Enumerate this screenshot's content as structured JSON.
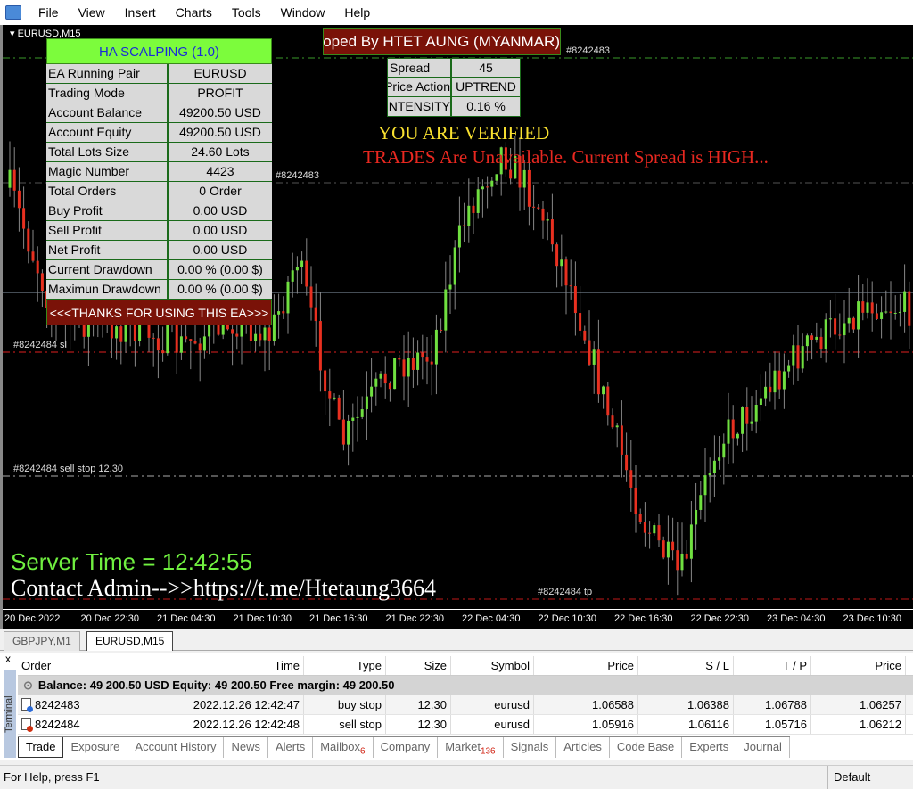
{
  "menu": {
    "items": [
      "File",
      "View",
      "Insert",
      "Charts",
      "Tools",
      "Window",
      "Help"
    ]
  },
  "chart": {
    "title": "EURUSD,M15",
    "order_labels": [
      "#8242483",
      "#8242483",
      "#8242484 sl",
      "#8242484 sell stop 12.30",
      "#8242484 tp"
    ],
    "time_labels": [
      "20 Dec 2022",
      "20 Dec 22:30",
      "21 Dec 04:30",
      "21 Dec 10:30",
      "21 Dec 16:30",
      "21 Dec 22:30",
      "22 Dec 04:30",
      "22 Dec 10:30",
      "22 Dec 16:30",
      "22 Dec 22:30",
      "23 Dec 04:30",
      "23 Dec 10:30"
    ],
    "colors": {
      "bull": "#70e040",
      "bear": "#e83020",
      "wick": "#888888"
    }
  },
  "ea_panel": {
    "title": "HA SCALPING (1.0)",
    "rows": [
      {
        "label": "EA Running Pair",
        "value": "EURUSD"
      },
      {
        "label": "Trading Mode",
        "value": "PROFIT"
      },
      {
        "label": "Account Balance",
        "value": "49200.50 USD"
      },
      {
        "label": "Account Equity",
        "value": "49200.50 USD"
      },
      {
        "label": "Total Lots Size",
        "value": "24.60 Lots"
      },
      {
        "label": "Magic Number",
        "value": "4423"
      },
      {
        "label": "Total Orders",
        "value": "0 Order"
      },
      {
        "label": "Buy Profit",
        "value": "0.00 USD"
      },
      {
        "label": "Sell Profit",
        "value": "0.00 USD"
      },
      {
        "label": "Net Profit",
        "value": "0.00 USD"
      },
      {
        "label": "Current Drawdown",
        "value": "0.00 % (0.00 $)"
      },
      {
        "label": "Maximun Drawdown",
        "value": "0.00 % (0.00 $)"
      }
    ],
    "footer": "<<<THANKS FOR USING THIS EA>>>"
  },
  "developer_banner": "Developed By HTET AUNG (MYANMAR)",
  "spread_panel": {
    "rows": [
      {
        "label": "Spread",
        "value": "45"
      },
      {
        "label": "Price Action",
        "value": "UPTREND"
      },
      {
        "label": "INTENSITY",
        "value": "0.16 %"
      }
    ]
  },
  "messages": {
    "verified": "YOU ARE VERIFIED",
    "trades": "TRADES Are Unavailable. Current Spread is HIGH...",
    "server_time": "Server Time = 12:42:55",
    "contact": "Contact Admin-->>https://t.me/Htetaung3664"
  },
  "chart_tabs": [
    {
      "label": "GBPJPY,M1",
      "active": false
    },
    {
      "label": "EURUSD,M15",
      "active": true
    }
  ],
  "terminal": {
    "side_label": "Terminal",
    "close": "x",
    "columns": [
      "Order",
      "Time",
      "Type",
      "Size",
      "Symbol",
      "Price",
      "S / L",
      "T / P",
      "Price"
    ],
    "balance": "Balance: 49 200.50 USD  Equity: 49 200.50  Free margin: 49 200.50",
    "rows": [
      [
        "8242483",
        "2022.12.26 12:42:47",
        "buy stop",
        "12.30",
        "eurusd",
        "1.06588",
        "1.06388",
        "1.06788",
        "1.06257"
      ],
      [
        "8242484",
        "2022.12.26 12:42:48",
        "sell stop",
        "12.30",
        "eurusd",
        "1.05916",
        "1.06116",
        "1.05716",
        "1.06212"
      ]
    ],
    "tabs": [
      {
        "label": "Trade"
      },
      {
        "label": "Exposure"
      },
      {
        "label": "Account History"
      },
      {
        "label": "News"
      },
      {
        "label": "Alerts"
      },
      {
        "label": "Mailbox",
        "badge": "6"
      },
      {
        "label": "Company"
      },
      {
        "label": "Market",
        "badge": "136"
      },
      {
        "label": "Signals"
      },
      {
        "label": "Articles"
      },
      {
        "label": "Code Base"
      },
      {
        "label": "Experts"
      },
      {
        "label": "Journal"
      }
    ]
  },
  "status": {
    "help": "For Help, press F1",
    "profile": "Default"
  }
}
